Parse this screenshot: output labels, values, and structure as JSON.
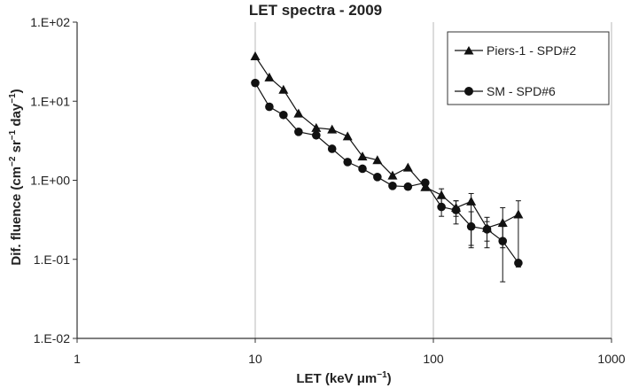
{
  "chart_data": {
    "type": "line",
    "title": "LET spectra - 2009",
    "xlabel": "LET (keV μm",
    "xlabel_sup": "−1",
    "xlabel_end": ")",
    "ylabel": "Dif. fluence (cm",
    "ylabel_sup1": "−2",
    "ylabel_mid": " sr",
    "ylabel_sup2": "−1",
    "ylabel_mid2": " day",
    "ylabel_sup3": "−1",
    "ylabel_end": ")",
    "x_scale": "log",
    "y_scale": "log",
    "xlim": [
      1,
      1000
    ],
    "ylim": [
      0.01,
      100
    ],
    "x_tick_labels": [
      "1",
      "10",
      "100",
      "1000"
    ],
    "y_tick_labels": [
      "1.E-02",
      "1.E-01",
      "1.E+00",
      "1.E+01",
      "1.E+02"
    ],
    "x_gridlines": true,
    "y_gridlines": false,
    "legend_position": "top-right",
    "series": [
      {
        "name": "Piers-1 - SPD#2",
        "marker": "triangle",
        "points": [
          {
            "x": 10.0,
            "y": 37.0
          },
          {
            "x": 12.0,
            "y": 20.0
          },
          {
            "x": 14.4,
            "y": 14.0
          },
          {
            "x": 17.5,
            "y": 7.0
          },
          {
            "x": 22.0,
            "y": 4.6
          },
          {
            "x": 27.0,
            "y": 4.4
          },
          {
            "x": 33.0,
            "y": 3.6
          },
          {
            "x": 40.0,
            "y": 2.0
          },
          {
            "x": 48.5,
            "y": 1.8
          },
          {
            "x": 59.0,
            "y": 1.15
          },
          {
            "x": 72.0,
            "y": 1.45
          },
          {
            "x": 90.0,
            "y": 0.82
          },
          {
            "x": 111.0,
            "y": 0.65,
            "err_low": 0.5,
            "err_high": 0.78
          },
          {
            "x": 134.0,
            "y": 0.45,
            "err_low": 0.35,
            "err_high": 0.55
          },
          {
            "x": 163.0,
            "y": 0.54,
            "err_low": 0.15,
            "err_high": 0.68
          },
          {
            "x": 200.0,
            "y": 0.25,
            "err_low": 0.17,
            "err_high": 0.3
          },
          {
            "x": 245.0,
            "y": 0.29,
            "err_low": 0.14,
            "err_high": 0.45
          },
          {
            "x": 300.0,
            "y": 0.37,
            "err_low": 0.08,
            "err_high": 0.55
          }
        ]
      },
      {
        "name": "SM - SPD#6",
        "marker": "circle",
        "points": [
          {
            "x": 10.0,
            "y": 17.0
          },
          {
            "x": 12.0,
            "y": 8.5
          },
          {
            "x": 14.4,
            "y": 6.7
          },
          {
            "x": 17.5,
            "y": 4.1
          },
          {
            "x": 22.0,
            "y": 3.7
          },
          {
            "x": 27.0,
            "y": 2.5
          },
          {
            "x": 33.0,
            "y": 1.7
          },
          {
            "x": 40.0,
            "y": 1.4
          },
          {
            "x": 48.5,
            "y": 1.1
          },
          {
            "x": 59.0,
            "y": 0.85
          },
          {
            "x": 72.0,
            "y": 0.83
          },
          {
            "x": 90.0,
            "y": 0.93
          },
          {
            "x": 111.0,
            "y": 0.46,
            "err_low": 0.35,
            "err_high": 0.6
          },
          {
            "x": 134.0,
            "y": 0.42,
            "err_low": 0.28,
            "err_high": 0.55
          },
          {
            "x": 163.0,
            "y": 0.26,
            "err_low": 0.14,
            "err_high": 0.4
          },
          {
            "x": 200.0,
            "y": 0.24,
            "err_low": 0.14,
            "err_high": 0.34
          },
          {
            "x": 245.0,
            "y": 0.17,
            "err_low": 0.052,
            "err_high": 0.26
          },
          {
            "x": 300.0,
            "y": 0.09
          }
        ]
      }
    ]
  }
}
